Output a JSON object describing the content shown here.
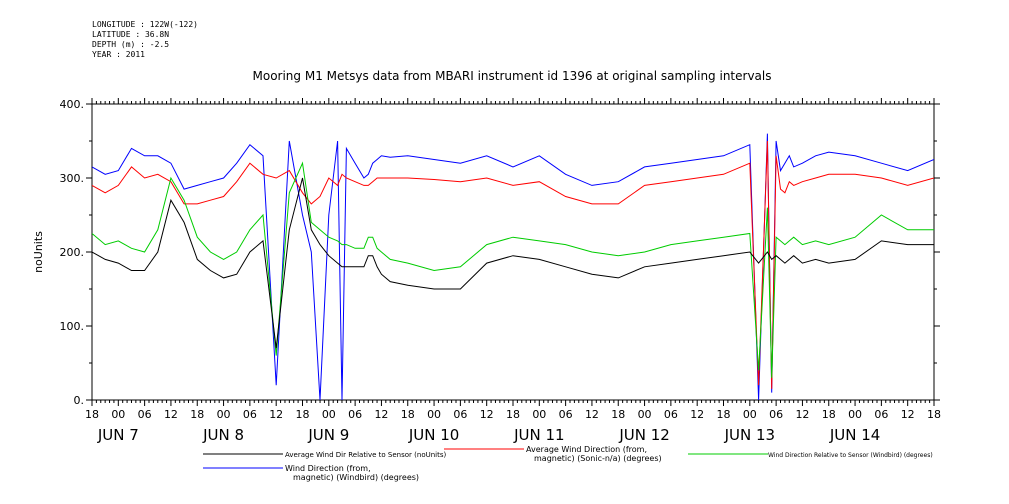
{
  "metadata": [
    "LONGITUDE : 122W(-122)",
    "LATITUDE : 36.8N",
    "DEPTH (m) : -2.5",
    "YEAR : 2011"
  ],
  "chart_data": {
    "type": "line",
    "title": "Mooring M1 Metsys data from MBARI instrument id 1396 at original sampling intervals",
    "xlabel": "",
    "ylabel": "noUnits",
    "ylim": [
      0,
      400
    ],
    "yticks": [
      "0.",
      "100.",
      "200.",
      "300.",
      "400."
    ],
    "grid": false,
    "legend_position": "bottom",
    "hour_ticks": [
      "18",
      "00",
      "06",
      "12",
      "18",
      "00",
      "06",
      "12",
      "18",
      "00",
      "06",
      "12",
      "18",
      "00",
      "06",
      "12",
      "18",
      "00",
      "06",
      "12",
      "18",
      "00",
      "06",
      "12",
      "18",
      "00",
      "06",
      "12",
      "18",
      "00",
      "06",
      "12",
      "18"
    ],
    "day_labels": [
      {
        "hour": 6,
        "label": "JUN  7"
      },
      {
        "hour": 30,
        "label": "JUN  8"
      },
      {
        "hour": 54,
        "label": "JUN  9"
      },
      {
        "hour": 78,
        "label": "JUN 10"
      },
      {
        "hour": 102,
        "label": "JUN 11"
      },
      {
        "hour": 126,
        "label": "JUN 12"
      },
      {
        "hour": 150,
        "label": "JUN 13"
      },
      {
        "hour": 174,
        "label": "JUN 14"
      }
    ],
    "x_units": "hours since JUN 6 18:00",
    "xlim": [
      0,
      192
    ],
    "series": [
      {
        "name": "Wind Direction (from, magnetic) (Windbird) (degrees)",
        "color": "#0000ff",
        "x": [
          0,
          3,
          6,
          9,
          12,
          15,
          18,
          21,
          24,
          27,
          30,
          33,
          36,
          39,
          42,
          45,
          48,
          50,
          52,
          54,
          56,
          57,
          58,
          60,
          62,
          63,
          64,
          65,
          66,
          68,
          72,
          78,
          84,
          90,
          96,
          102,
          108,
          114,
          120,
          126,
          132,
          138,
          144,
          150,
          152,
          154,
          155,
          156,
          157,
          158,
          159,
          160,
          162,
          165,
          168,
          174,
          180,
          186,
          192
        ],
        "y": [
          315,
          305,
          310,
          340,
          330,
          330,
          320,
          285,
          290,
          295,
          300,
          320,
          345,
          330,
          20,
          350,
          250,
          200,
          0,
          250,
          350,
          0,
          340,
          320,
          300,
          305,
          320,
          325,
          330,
          328,
          330,
          325,
          320,
          330,
          315,
          330,
          305,
          290,
          295,
          315,
          320,
          325,
          330,
          345,
          0,
          360,
          10,
          350,
          310,
          320,
          330,
          315,
          320,
          330,
          335,
          330,
          320,
          310,
          325
        ]
      },
      {
        "name": "Average Wind Direction (from, magnetic) (Sonic-n/a) (degrees)",
        "color": "#ff0000",
        "x": [
          0,
          3,
          6,
          9,
          12,
          15,
          18,
          21,
          24,
          27,
          30,
          33,
          36,
          39,
          42,
          45,
          48,
          50,
          52,
          54,
          56,
          57,
          58,
          60,
          62,
          63,
          64,
          65,
          66,
          68,
          72,
          78,
          84,
          90,
          96,
          102,
          108,
          114,
          120,
          126,
          132,
          138,
          144,
          150,
          152,
          154,
          155,
          156,
          157,
          158,
          159,
          160,
          162,
          165,
          168,
          174,
          180,
          186,
          192
        ],
        "y": [
          290,
          280,
          290,
          315,
          300,
          305,
          295,
          265,
          265,
          270,
          275,
          295,
          320,
          305,
          300,
          310,
          280,
          265,
          275,
          300,
          290,
          305,
          300,
          295,
          290,
          290,
          295,
          300,
          300,
          300,
          300,
          298,
          295,
          300,
          290,
          295,
          275,
          265,
          265,
          290,
          295,
          300,
          305,
          320,
          20,
          350,
          15,
          330,
          285,
          280,
          295,
          290,
          295,
          300,
          305,
          305,
          300,
          290,
          300
        ]
      },
      {
        "name": "Wind Direction Relative to Sensor (Windbird) (degrees)",
        "color": "#00cc00",
        "x": [
          0,
          3,
          6,
          9,
          12,
          15,
          18,
          21,
          24,
          27,
          30,
          33,
          36,
          39,
          42,
          45,
          48,
          50,
          52,
          54,
          56,
          57,
          58,
          60,
          62,
          63,
          64,
          65,
          66,
          68,
          72,
          78,
          84,
          90,
          96,
          102,
          108,
          114,
          120,
          126,
          132,
          138,
          144,
          150,
          152,
          154,
          155,
          156,
          157,
          158,
          159,
          160,
          162,
          165,
          168,
          174,
          180,
          186,
          192
        ],
        "y": [
          225,
          210,
          215,
          205,
          200,
          230,
          300,
          270,
          220,
          200,
          190,
          200,
          230,
          250,
          60,
          280,
          320,
          240,
          230,
          220,
          215,
          210,
          210,
          205,
          205,
          220,
          220,
          205,
          200,
          190,
          185,
          175,
          180,
          210,
          220,
          215,
          210,
          200,
          195,
          200,
          210,
          215,
          220,
          225,
          40,
          260,
          30,
          220,
          215,
          210,
          215,
          220,
          210,
          215,
          210,
          220,
          250,
          230,
          230
        ]
      },
      {
        "name": "Average Wind Dir Relative to Sensor (noUnits)",
        "color": "#000000",
        "x": [
          0,
          3,
          6,
          9,
          12,
          15,
          18,
          21,
          24,
          27,
          30,
          33,
          36,
          39,
          42,
          45,
          48,
          50,
          52,
          54,
          56,
          57,
          58,
          60,
          62,
          63,
          64,
          65,
          66,
          68,
          72,
          78,
          84,
          90,
          96,
          102,
          108,
          114,
          120,
          126,
          132,
          138,
          144,
          150,
          152,
          154,
          155,
          156,
          157,
          158,
          159,
          160,
          162,
          165,
          168,
          174,
          180,
          186,
          192
        ],
        "y": [
          200,
          190,
          185,
          175,
          175,
          200,
          270,
          240,
          190,
          175,
          165,
          170,
          200,
          215,
          70,
          230,
          300,
          230,
          210,
          195,
          185,
          180,
          180,
          180,
          180,
          195,
          195,
          180,
          170,
          160,
          155,
          150,
          150,
          185,
          195,
          190,
          180,
          170,
          165,
          180,
          185,
          190,
          195,
          200,
          185,
          200,
          190,
          195,
          190,
          185,
          190,
          195,
          185,
          190,
          185,
          190,
          215,
          210,
          210
        ]
      }
    ]
  }
}
